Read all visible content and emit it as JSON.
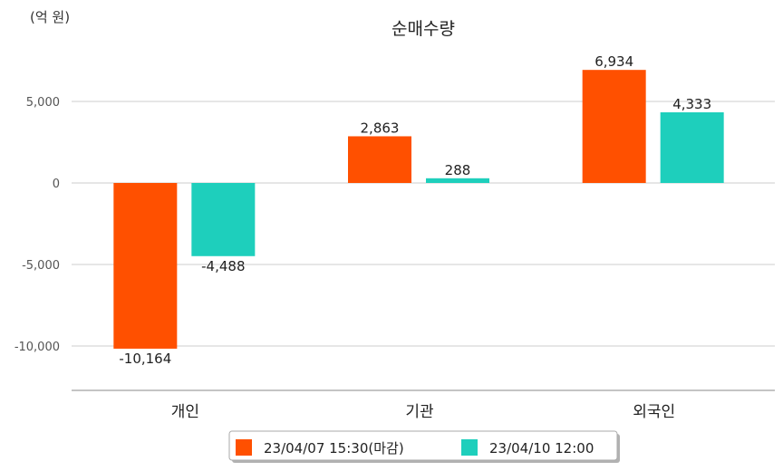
{
  "chart_data": {
    "type": "bar",
    "title": "순매수량",
    "unit_label": "(억 원)",
    "categories": [
      "개인",
      "기관",
      "외국인"
    ],
    "series": [
      {
        "name": "23/04/07 15:30(마감)",
        "color": "#ff5000",
        "values": [
          -10164,
          2863,
          6934
        ],
        "labels": [
          "-10,164",
          "2,863",
          "6,934"
        ]
      },
      {
        "name": "23/04/10 12:00",
        "color": "#1ecfbc",
        "values": [
          -4488,
          288,
          4333
        ],
        "labels": [
          "-4,488",
          "288",
          "4,333"
        ]
      }
    ],
    "yticks": [
      5000,
      0,
      -5000,
      -10000
    ],
    "ytick_labels": [
      "5,000",
      "0",
      "-5,000",
      "-10,000"
    ],
    "ylim": [
      -12500,
      8500
    ],
    "grid": true,
    "legend_position": "bottom"
  }
}
